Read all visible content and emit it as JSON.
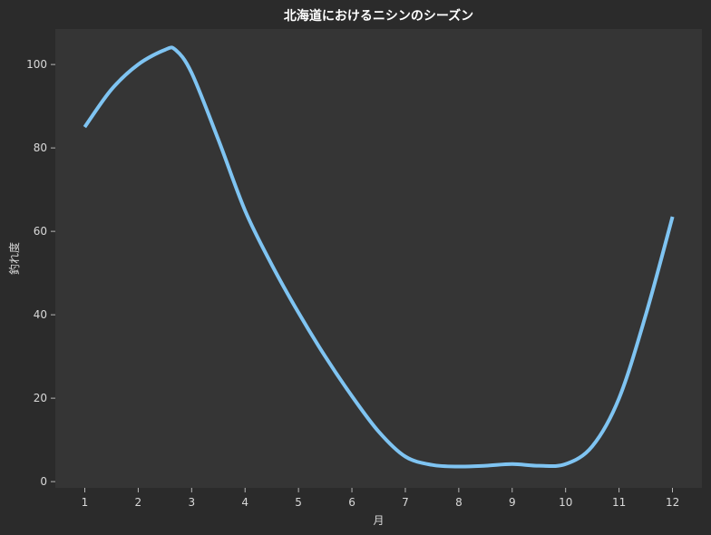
{
  "chart_data": {
    "type": "line",
    "title": "北海道におけるニシンのシーズン",
    "xlabel": "月",
    "ylabel": "釣れ度",
    "x": [
      1,
      1.5,
      2,
      2.5,
      2.7,
      3,
      3.5,
      4,
      4.5,
      5,
      5.5,
      6,
      6.5,
      7,
      7.5,
      8,
      8.5,
      9,
      9.5,
      10,
      10.5,
      11,
      11.5,
      12
    ],
    "series": [
      {
        "values": [
          85,
          94,
          100,
          103.5,
          103.5,
          98,
          82,
          65,
          52,
          40.5,
          30,
          20.5,
          12,
          6,
          4,
          3.6,
          3.8,
          4.2,
          3.8,
          4.2,
          8.5,
          20,
          40,
          63.5
        ],
        "color": "#7fc4f2"
      }
    ],
    "xticks": [
      "1",
      "2",
      "3",
      "4",
      "5",
      "6",
      "7",
      "8",
      "9",
      "10",
      "11",
      "12"
    ],
    "yticks": [
      "0",
      "20",
      "40",
      "60",
      "80",
      "100"
    ],
    "xlim": [
      0.45,
      12.55
    ],
    "ylim": [
      -1.5,
      108.5
    ],
    "grid": false,
    "legend": "none",
    "colors": {
      "figure_bg": "#2b2b2b",
      "plot_bg": "#353535",
      "text": "#d9d9d9"
    }
  }
}
